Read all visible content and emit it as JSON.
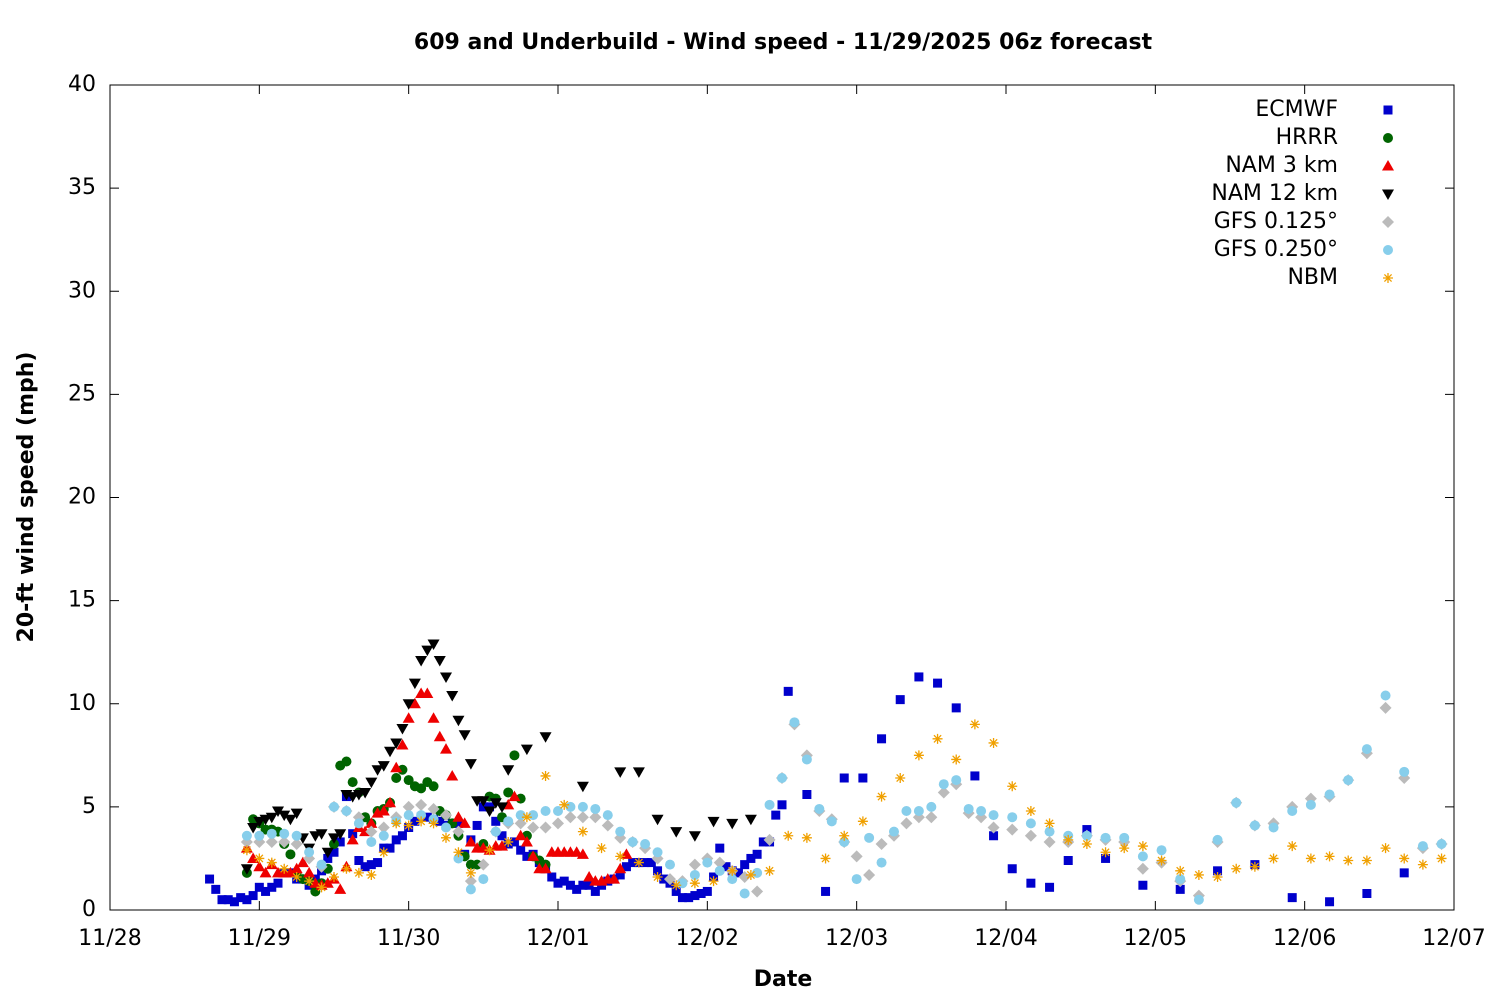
{
  "chart_data": {
    "type": "scatter",
    "title": "609 and Underbuild - Wind speed - 11/29/2025 06z forecast",
    "x_label": "Date",
    "y_label": "20-ft wind speed (mph)",
    "xlim": [
      0,
      216
    ],
    "xticks": [
      {
        "value": 0,
        "label": "11/28"
      },
      {
        "value": 24,
        "label": "11/29"
      },
      {
        "value": 48,
        "label": "11/30"
      },
      {
        "value": 72,
        "label": "12/01"
      },
      {
        "value": 96,
        "label": "12/02"
      },
      {
        "value": 120,
        "label": "12/03"
      },
      {
        "value": 144,
        "label": "12/04"
      },
      {
        "value": 168,
        "label": "12/05"
      },
      {
        "value": 192,
        "label": "12/06"
      },
      {
        "value": 216,
        "label": "12/07"
      }
    ],
    "ylim": [
      0,
      40
    ],
    "yticks": [
      0,
      5,
      10,
      15,
      20,
      25,
      30,
      35,
      40
    ],
    "grid": false,
    "legend": "top-right",
    "series": [
      {
        "name": "ECMWF",
        "color": "#0000cc",
        "marker": "square",
        "x": [
          16,
          17,
          18,
          19,
          20,
          21,
          22,
          23,
          24,
          25,
          26,
          27,
          28,
          29,
          30,
          31,
          32,
          33,
          34,
          35,
          36,
          37,
          38,
          39,
          40,
          41,
          42,
          43,
          44,
          45,
          46,
          47,
          48,
          49,
          50,
          51,
          52,
          53,
          54,
          55,
          56,
          57,
          58,
          59,
          60,
          61,
          62,
          63,
          64,
          65,
          66,
          67,
          68,
          69,
          70,
          71,
          72,
          73,
          74,
          75,
          76,
          77,
          78,
          79,
          80,
          81,
          82,
          83,
          84,
          85,
          86,
          87,
          88,
          89,
          90,
          91,
          92,
          93,
          94,
          95,
          96,
          97,
          98,
          99,
          100,
          101,
          102,
          103,
          104,
          105,
          106,
          107,
          108,
          109,
          112,
          115,
          118,
          121,
          124,
          127,
          130,
          133,
          136,
          139,
          142,
          145,
          148,
          151,
          154,
          157,
          160,
          166,
          172,
          178,
          184,
          190,
          196,
          202,
          208
        ],
        "values": [
          1.5,
          1.0,
          0.5,
          0.5,
          0.4,
          0.6,
          0.5,
          0.7,
          1.1,
          0.9,
          1.1,
          1.3,
          1.8,
          1.8,
          1.5,
          1.5,
          1.2,
          1.5,
          1.9,
          2.5,
          2.8,
          3.3,
          5.5,
          3.7,
          2.4,
          2.1,
          2.2,
          2.3,
          3.0,
          3.0,
          3.4,
          3.6,
          4.0,
          4.3,
          4.5,
          4.5,
          4.4,
          4.3,
          4.1,
          4.2,
          4.2,
          2.7,
          3.4,
          4.1,
          5.0,
          5.0,
          4.3,
          3.6,
          3.2,
          3.3,
          2.9,
          2.6,
          2.7,
          2.3,
          2.0,
          1.6,
          1.3,
          1.4,
          1.2,
          1.0,
          1.2,
          1.2,
          0.9,
          1.2,
          1.4,
          1.5,
          1.7,
          2.1,
          2.3,
          2.3,
          2.3,
          2.3,
          1.9,
          1.5,
          1.3,
          0.9,
          0.6,
          0.6,
          0.7,
          0.8,
          0.9,
          1.6,
          3.0,
          2.1,
          1.9,
          1.8,
          2.2,
          2.5,
          2.7,
          3.3,
          3.3,
          4.6,
          5.1,
          10.6,
          5.6,
          0.9,
          6.4,
          6.4,
          8.3,
          10.2,
          11.3,
          11.0,
          9.8,
          6.5,
          3.6,
          2.0,
          1.3,
          1.1,
          2.4,
          3.9,
          2.5,
          1.2,
          1.0,
          1.9,
          2.2,
          0.6,
          0.4,
          0.8,
          1.8
        ]
      },
      {
        "name": "HRRR",
        "color": "#006400",
        "marker": "circle",
        "x": [
          22,
          23,
          24,
          25,
          26,
          27,
          28,
          29,
          30,
          31,
          32,
          33,
          34,
          35,
          36,
          37,
          38,
          39,
          40,
          41,
          42,
          43,
          44,
          45,
          46,
          47,
          48,
          49,
          50,
          51,
          52,
          53,
          54,
          55,
          56,
          57,
          58,
          59,
          60,
          61,
          62,
          63,
          64,
          65,
          66,
          67,
          68,
          69,
          70
        ],
        "values": [
          1.8,
          4.4,
          4.2,
          3.9,
          3.9,
          3.8,
          3.2,
          2.7,
          1.8,
          1.5,
          1.4,
          0.9,
          1.3,
          2.0,
          3.2,
          7.0,
          7.2,
          6.2,
          5.7,
          4.5,
          4.2,
          4.8,
          4.9,
          5.2,
          6.4,
          6.8,
          6.3,
          6.0,
          5.9,
          6.2,
          6.0,
          4.8,
          4.6,
          4.2,
          3.6,
          2.6,
          2.2,
          2.2,
          3.2,
          5.5,
          5.4,
          4.5,
          5.7,
          7.5,
          5.4,
          3.6,
          2.6,
          2.4,
          2.2
        ]
      },
      {
        "name": "NAM 3 km",
        "color": "#ee0000",
        "marker": "triangle-up",
        "x": [
          22,
          23,
          24,
          25,
          26,
          27,
          28,
          29,
          30,
          31,
          32,
          33,
          34,
          35,
          36,
          37,
          38,
          39,
          40,
          41,
          42,
          43,
          44,
          45,
          46,
          47,
          48,
          49,
          50,
          51,
          52,
          53,
          54,
          55,
          56,
          57,
          58,
          59,
          60,
          61,
          62,
          63,
          64,
          65,
          66,
          67,
          68,
          69,
          70,
          71,
          72,
          73,
          74,
          75,
          76,
          77,
          78,
          79,
          80,
          81,
          82,
          83
        ],
        "values": [
          3.0,
          2.5,
          2.1,
          1.8,
          2.2,
          1.8,
          1.8,
          1.8,
          2.0,
          2.3,
          1.8,
          1.3,
          1.2,
          1.3,
          1.5,
          1.0,
          2.1,
          3.4,
          4.0,
          3.8,
          4.2,
          4.7,
          4.8,
          5.2,
          6.9,
          8.0,
          9.3,
          10.0,
          10.5,
          10.5,
          9.3,
          8.4,
          7.8,
          6.5,
          4.5,
          4.2,
          3.3,
          3.0,
          3.0,
          2.9,
          3.1,
          3.1,
          5.1,
          5.5,
          3.6,
          3.3,
          2.6,
          2.0,
          2.0,
          2.8,
          2.8,
          2.8,
          2.8,
          2.8,
          2.7,
          1.6,
          1.4,
          1.4,
          1.5,
          1.5,
          2.0,
          2.7
        ]
      },
      {
        "name": "NAM 12 km",
        "color": "#000000",
        "marker": "triangle-down",
        "x": [
          22,
          23,
          24,
          25,
          26,
          27,
          28,
          29,
          30,
          31,
          32,
          33,
          34,
          35,
          36,
          37,
          38,
          39,
          40,
          41,
          42,
          43,
          44,
          45,
          46,
          47,
          48,
          49,
          50,
          51,
          52,
          53,
          54,
          55,
          56,
          57,
          58,
          59,
          60,
          61,
          62,
          63,
          64,
          67,
          70,
          76,
          82,
          85,
          88,
          91,
          94,
          97,
          100,
          103
        ],
        "values": [
          2.0,
          4.0,
          4.3,
          4.4,
          4.5,
          4.8,
          4.6,
          4.4,
          4.7,
          3.5,
          3.0,
          3.6,
          3.7,
          2.8,
          3.5,
          3.7,
          5.6,
          5.5,
          5.6,
          5.7,
          6.2,
          6.8,
          7.0,
          7.7,
          8.1,
          8.8,
          10.0,
          11.0,
          12.1,
          12.6,
          12.9,
          12.1,
          11.3,
          10.4,
          9.2,
          8.5,
          7.1,
          5.3,
          5.3,
          4.8,
          5.2,
          5.0,
          6.8,
          7.8,
          8.4,
          6.0,
          6.7,
          6.7,
          4.4,
          3.8,
          3.6,
          4.3,
          4.2,
          4.4
        ]
      },
      {
        "name": "GFS 0.125°",
        "color": "#bbbbbb",
        "marker": "diamond",
        "x": [
          22,
          24,
          26,
          28,
          30,
          32,
          34,
          36,
          38,
          40,
          42,
          44,
          46,
          48,
          50,
          52,
          54,
          56,
          58,
          60,
          62,
          64,
          66,
          68,
          70,
          72,
          74,
          76,
          78,
          80,
          82,
          84,
          86,
          88,
          90,
          92,
          94,
          96,
          98,
          100,
          102,
          104,
          106,
          108,
          110,
          112,
          114,
          116,
          118,
          120,
          122,
          124,
          126,
          128,
          130,
          132,
          134,
          136,
          138,
          140,
          142,
          145,
          148,
          151,
          154,
          157,
          160,
          163,
          166,
          169,
          172,
          175,
          178,
          181,
          184,
          187,
          190,
          193,
          196,
          199,
          202,
          205,
          208,
          211,
          214
        ],
        "values": [
          3.3,
          3.3,
          3.3,
          3.3,
          3.2,
          2.5,
          2.1,
          5.0,
          4.8,
          4.5,
          3.8,
          4.0,
          4.5,
          5.0,
          5.1,
          4.9,
          4.6,
          3.8,
          1.4,
          2.2,
          3.8,
          4.2,
          4.2,
          4.0,
          4.0,
          4.2,
          4.5,
          4.5,
          4.5,
          4.1,
          3.5,
          3.3,
          3.0,
          2.5,
          1.5,
          1.4,
          2.2,
          2.5,
          2.3,
          1.9,
          1.6,
          0.9,
          3.4,
          6.4,
          9.0,
          7.5,
          4.8,
          4.4,
          3.3,
          2.6,
          1.7,
          3.2,
          3.6,
          4.2,
          4.5,
          4.5,
          5.7,
          6.1,
          4.7,
          4.5,
          4.0,
          3.9,
          3.6,
          3.3,
          3.3,
          3.6,
          3.4,
          3.3,
          2.0,
          2.3,
          1.4,
          0.7,
          3.3,
          5.2,
          4.1,
          4.2,
          5.0,
          5.4,
          5.5,
          6.3,
          7.6,
          9.8,
          6.4,
          3.0,
          3.2
        ]
      },
      {
        "name": "GFS 0.250°",
        "color": "#87ceeb",
        "marker": "circle",
        "x": [
          22,
          24,
          26,
          28,
          30,
          32,
          34,
          36,
          38,
          40,
          42,
          44,
          46,
          48,
          50,
          52,
          54,
          56,
          58,
          60,
          62,
          64,
          66,
          68,
          70,
          72,
          74,
          76,
          78,
          80,
          82,
          84,
          86,
          88,
          90,
          92,
          94,
          96,
          98,
          100,
          102,
          104,
          106,
          108,
          110,
          112,
          114,
          116,
          118,
          120,
          122,
          124,
          126,
          128,
          130,
          132,
          134,
          136,
          138,
          140,
          142,
          145,
          148,
          151,
          154,
          157,
          160,
          163,
          166,
          169,
          172,
          175,
          178,
          181,
          184,
          187,
          190,
          193,
          196,
          199,
          202,
          205,
          208,
          211,
          214
        ],
        "values": [
          3.6,
          3.6,
          3.7,
          3.7,
          3.6,
          2.8,
          2.2,
          5.0,
          4.8,
          4.2,
          3.3,
          3.6,
          4.3,
          4.6,
          4.6,
          4.4,
          4.0,
          2.5,
          1.0,
          1.5,
          3.8,
          4.3,
          4.6,
          4.6,
          4.8,
          4.8,
          5.0,
          5.0,
          4.9,
          4.6,
          3.8,
          3.3,
          3.2,
          2.8,
          2.2,
          1.3,
          1.7,
          2.3,
          1.9,
          1.5,
          0.8,
          1.8,
          5.1,
          6.4,
          9.1,
          7.3,
          4.9,
          4.3,
          3.3,
          1.5,
          3.5,
          2.3,
          3.8,
          4.8,
          4.8,
          5.0,
          6.1,
          6.3,
          4.9,
          4.8,
          4.6,
          4.5,
          4.2,
          3.8,
          3.6,
          3.6,
          3.5,
          3.5,
          2.6,
          2.9,
          1.5,
          0.5,
          3.4,
          5.2,
          4.1,
          4.0,
          4.8,
          5.1,
          5.6,
          6.3,
          7.8,
          10.4,
          6.7,
          3.1,
          3.2
        ]
      },
      {
        "name": "NBM",
        "color": "#f0a000",
        "marker": "asterisk",
        "x": [
          22,
          24,
          26,
          28,
          30,
          32,
          34,
          36,
          38,
          40,
          42,
          44,
          46,
          48,
          50,
          52,
          54,
          56,
          58,
          61,
          64,
          67,
          70,
          73,
          76,
          79,
          82,
          85,
          88,
          91,
          94,
          97,
          100,
          103,
          106,
          109,
          112,
          115,
          118,
          121,
          124,
          127,
          130,
          133,
          136,
          139,
          142,
          145,
          148,
          151,
          154,
          157,
          160,
          163,
          166,
          169,
          172,
          175,
          178,
          181,
          184,
          187,
          190,
          193,
          196,
          199,
          202,
          205,
          208,
          211,
          214
        ],
        "values": [
          2.9,
          2.5,
          2.3,
          2.0,
          1.6,
          1.4,
          1.1,
          1.6,
          2.0,
          1.8,
          1.7,
          2.8,
          4.2,
          4.1,
          4.3,
          4.2,
          3.5,
          2.8,
          1.8,
          2.9,
          3.3,
          4.5,
          6.5,
          5.1,
          3.8,
          3.0,
          2.6,
          2.3,
          1.6,
          1.2,
          1.3,
          1.4,
          1.9,
          1.7,
          1.9,
          3.6,
          3.5,
          2.5,
          3.6,
          4.3,
          5.5,
          6.4,
          7.5,
          8.3,
          7.3,
          9.0,
          8.1,
          6.0,
          4.8,
          4.2,
          3.4,
          3.2,
          2.8,
          3.0,
          3.1,
          2.4,
          1.9,
          1.7,
          1.6,
          2.0,
          2.1,
          2.5,
          3.1,
          2.5,
          2.6,
          2.4,
          2.4,
          3.0,
          2.5,
          2.2,
          2.5
        ]
      }
    ]
  }
}
